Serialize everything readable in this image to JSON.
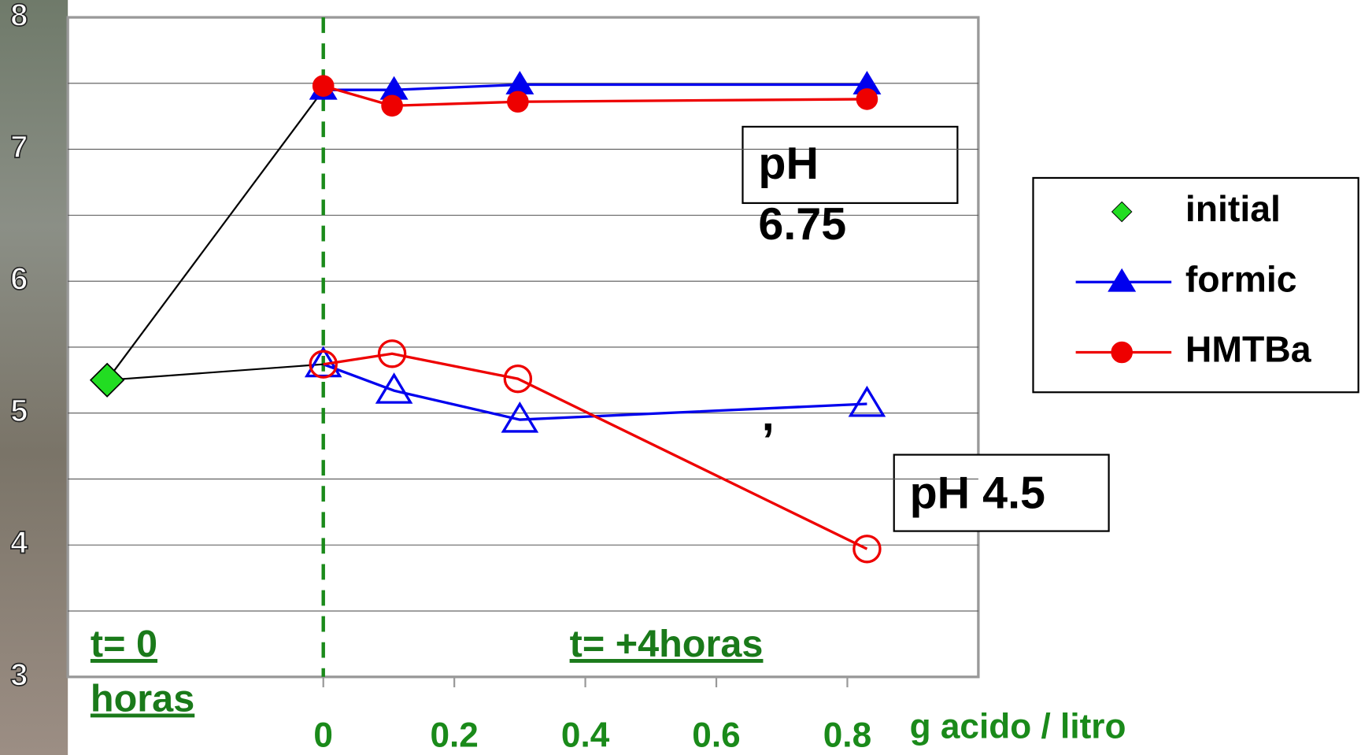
{
  "chart_data": {
    "type": "line",
    "xlabel": "g acido / litro",
    "xlim": [
      -0.39,
      1.0
    ],
    "ylim": [
      3,
      8
    ],
    "xticks": [
      0,
      0.2,
      0.4,
      0.6,
      0.8
    ],
    "yticks": [
      3,
      4,
      5,
      6,
      7,
      8
    ],
    "ygrid": [
      3.5,
      4,
      4.5,
      5,
      5.5,
      6,
      6.5,
      7,
      7.5
    ],
    "divider_x": 0,
    "divider_color": "#1a8a1a",
    "series": [
      {
        "name": "initial",
        "color": "#22dd22",
        "marker": "diamond",
        "filled": true,
        "x": [
          -0.33
        ],
        "values": [
          5.25
        ]
      },
      {
        "name": "formic",
        "color": "#0000ee",
        "marker": "triangle",
        "filled": true,
        "x": [
          0,
          0.108,
          0.3,
          0.83
        ],
        "values": [
          7.45,
          7.45,
          7.49,
          7.49
        ]
      },
      {
        "name": "HMTBa",
        "color": "#ee0000",
        "marker": "circle",
        "filled": true,
        "x": [
          0,
          0.105,
          0.297,
          0.83
        ],
        "values": [
          7.48,
          7.33,
          7.36,
          7.38
        ]
      },
      {
        "color": "#0000ee",
        "marker": "triangle",
        "filled": false,
        "x": [
          0,
          0.108,
          0.3,
          0.83
        ],
        "values": [
          5.37,
          5.17,
          4.95,
          5.07
        ]
      },
      {
        "color": "#ee0000",
        "marker": "circle",
        "filled": false,
        "x": [
          0,
          0.105,
          0.297,
          0.83
        ],
        "values": [
          5.37,
          5.45,
          5.26,
          3.97
        ]
      }
    ],
    "annotations": [
      {
        "lines": [
          "pH",
          "6.75"
        ]
      },
      {
        "lines": [
          "pH 4.5"
        ]
      },
      {
        "lines": [
          ","
        ]
      }
    ],
    "phase_labels": [
      [
        "t= 0",
        "horas"
      ],
      [
        "t= +4horas"
      ]
    ]
  }
}
